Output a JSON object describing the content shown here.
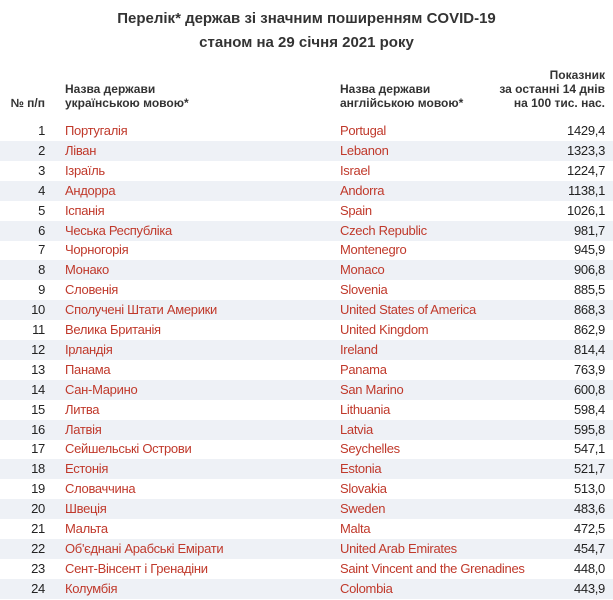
{
  "header": {
    "title": [
      "Перелік* держав зі значним поширенням COVID-19",
      "станом на 29 січня 2021 року"
    ]
  },
  "table": {
    "columns": [
      [
        "№ п/п"
      ],
      [
        "Назва держави",
        "українською мовою*"
      ],
      [
        "Назва держави",
        "англійською мовою*"
      ],
      [
        "Показник",
        "за останні 14 днів",
        "на 100 тис. нас."
      ]
    ],
    "rows": [
      [
        "1",
        "Португалія",
        "Portugal",
        "1429,4"
      ],
      [
        "2",
        "Ліван",
        "Lebanon",
        "1323,3"
      ],
      [
        "3",
        "Ізраїль",
        "Israel",
        "1224,7"
      ],
      [
        "4",
        "Андорра",
        "Andorra",
        "1138,1"
      ],
      [
        "5",
        "Іспанія",
        "Spain",
        "1026,1"
      ],
      [
        "6",
        "Чеська Республіка",
        "Czech Republic",
        "981,7"
      ],
      [
        "7",
        "Чорногорія",
        "Montenegro",
        "945,9"
      ],
      [
        "8",
        "Монако",
        "Monaco",
        "906,8"
      ],
      [
        "9",
        "Словенія",
        "Slovenia",
        "885,5"
      ],
      [
        "10",
        "Сполучені Штати Америки",
        "United States of America",
        "868,3"
      ],
      [
        "11",
        "Велика Британія",
        "United Kingdom",
        "862,9"
      ],
      [
        "12",
        "Ірландія",
        "Ireland",
        "814,4"
      ],
      [
        "13",
        "Панама",
        "Panama",
        "763,9"
      ],
      [
        "14",
        "Сан-Марино",
        "San Marino",
        "600,8"
      ],
      [
        "15",
        "Литва",
        "Lithuania",
        "598,4"
      ],
      [
        "16",
        "Латвія",
        "Latvia",
        "595,8"
      ],
      [
        "17",
        "Сейшельські Острови",
        "Seychelles",
        "547,1"
      ],
      [
        "18",
        "Естонія",
        "Estonia",
        "521,7"
      ],
      [
        "19",
        "Словаччина",
        "Slovakia",
        "513,0"
      ],
      [
        "20",
        "Швеція",
        "Sweden",
        "483,6"
      ],
      [
        "21",
        "Мальта",
        "Malta",
        "472,5"
      ],
      [
        "22",
        "Об'єднані Арабські Емірати",
        "United Arab Emirates",
        "454,7"
      ],
      [
        "23",
        "Сент-Вінсент і Гренадіни",
        "Saint Vincent and the Grenadines",
        "448,0"
      ],
      [
        "24",
        "Колумбія",
        "Colombia",
        "443,9"
      ]
    ]
  }
}
